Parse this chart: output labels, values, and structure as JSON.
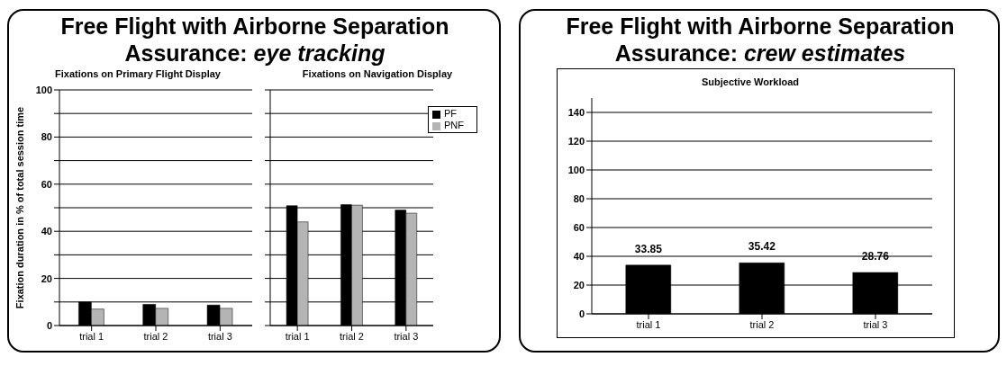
{
  "chart_data": [
    {
      "type": "bar",
      "title": "Free Flight with Airborne Separation Assurance: eye tracking",
      "subtitle": "Fixations on Primary Flight Display",
      "ylabel": "Fixation duration in % of  total session time",
      "categories": [
        "trial 1",
        "trial 2",
        "trial 3"
      ],
      "series": [
        {
          "color": "#000000",
          "values": [
            10.0,
            9.0,
            8.7
          ]
        },
        {
          "color": "#b4b4b4",
          "values": [
            7.0,
            7.3,
            7.3
          ]
        }
      ],
      "ylim": [
        0,
        100
      ],
      "yticks": [
        0,
        {
          "value": 10,
          "label": null
        },
        20,
        {
          "value": 30,
          "label": null
        },
        40,
        {
          "value": 50,
          "label": null
        },
        60,
        {
          "value": 70,
          "label": null
        },
        80,
        {
          "value": 90,
          "label": null
        },
        100
      ],
      "grid": "y"
    },
    {
      "type": "bar",
      "title": "Fixations on Navigation Display",
      "categories": [
        "trial 1",
        "trial 2",
        "trial 3"
      ],
      "series": [
        {
          "name": "PF",
          "color": "#000000",
          "values": [
            50.9,
            51.3,
            49.0
          ]
        },
        {
          "name": "PNF",
          "color": "#b4b4b4",
          "values": [
            44.0,
            51.1,
            47.7
          ]
        }
      ],
      "ylim": [
        0,
        100
      ],
      "yticks": [
        0,
        10,
        20,
        30,
        40,
        50,
        60,
        70,
        80,
        90,
        100
      ],
      "tick_labels": "x",
      "grid": "y",
      "legend": "top right"
    },
    {
      "type": "bar",
      "title": "Free Flight with Airborne Separation Assurance: crew estimates",
      "subtitle": "Subjective Workload",
      "categories": [
        "trial 1",
        "trial 2",
        "trial 3"
      ],
      "series": [
        {
          "color": "#000000",
          "values": [
            33.85,
            35.42,
            28.76
          ]
        }
      ],
      "ylim": [
        0,
        150
      ],
      "yticks": [
        0,
        20,
        40,
        60,
        80,
        100,
        120,
        140
      ],
      "grid": "y",
      "data_labels": true
    }
  ]
}
